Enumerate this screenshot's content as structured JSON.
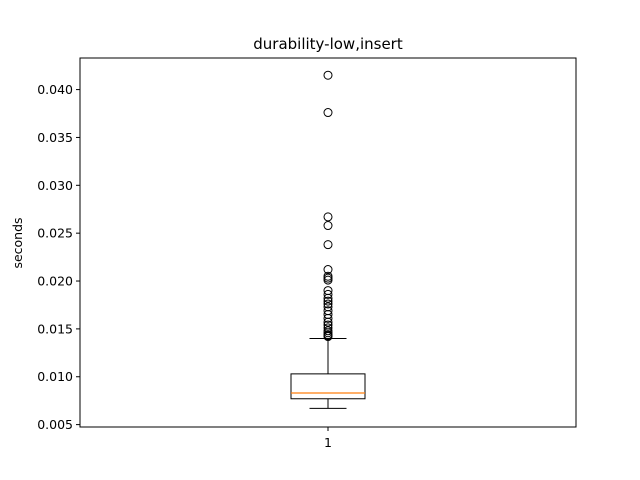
{
  "chart_data": {
    "type": "box",
    "title": "durability-low,insert",
    "xlabel": "",
    "ylabel": "seconds",
    "categories": [
      "1"
    ],
    "ylim": [
      0.00475,
      0.0433
    ],
    "yticks": [
      0.005,
      0.01,
      0.015,
      0.02,
      0.025,
      0.03,
      0.035,
      0.04
    ],
    "ytick_labels": [
      "0.005",
      "0.010",
      "0.015",
      "0.020",
      "0.025",
      "0.030",
      "0.035",
      "0.040"
    ],
    "grid": false,
    "boxes": [
      {
        "category": "1",
        "whisker_low": 0.0067,
        "q1": 0.0077,
        "median": 0.0083,
        "q3": 0.0103,
        "whisker_high": 0.014,
        "outliers": [
          0.0142,
          0.0143,
          0.0144,
          0.0146,
          0.0148,
          0.0151,
          0.0154,
          0.0157,
          0.0161,
          0.0165,
          0.0169,
          0.0173,
          0.0176,
          0.0179,
          0.0182,
          0.0186,
          0.019,
          0.0201,
          0.0203,
          0.0205,
          0.0212,
          0.0238,
          0.0258,
          0.0267,
          0.0376,
          0.0415
        ]
      }
    ],
    "colors": {
      "box": "#000000",
      "median": "#ff7f0e",
      "outlier": "#000000",
      "axes": "#000000"
    }
  }
}
